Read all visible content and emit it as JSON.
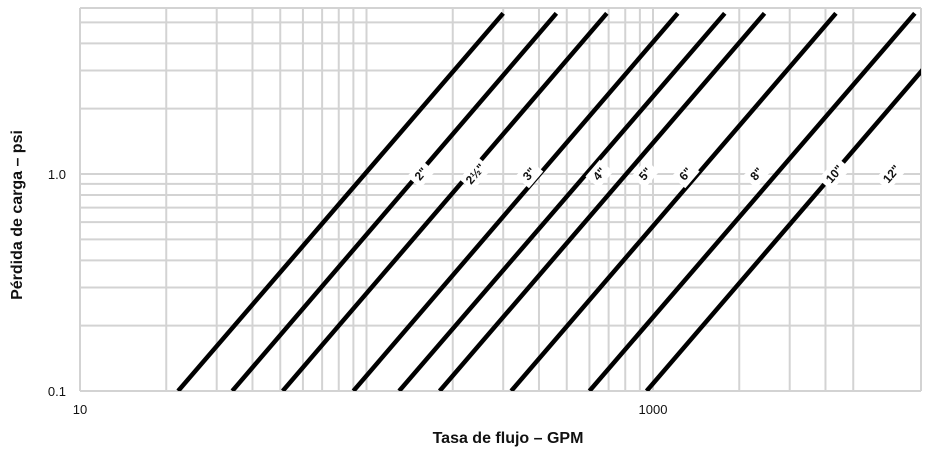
{
  "chart_data": {
    "type": "line",
    "title": "",
    "xlabel": "Tasa de flujo – GPM",
    "ylabel": "Pérdida de carga – psi",
    "x_scale": "log",
    "y_scale": "log",
    "xlim": [
      10,
      5000
    ],
    "ylim": [
      0.1,
      5.5
    ],
    "x_ticks": [
      {
        "value": 10,
        "label": "10"
      },
      {
        "value": 1000,
        "label": "1000"
      }
    ],
    "y_ticks": [
      {
        "value": 0.1,
        "label": "0.1"
      },
      {
        "value": 1.0,
        "label": "1.0"
      }
    ],
    "grid": true,
    "line_color": "#000000",
    "grid_color": "#d3d3d3",
    "series": [
      {
        "name": "2\"",
        "points": [
          [
            22,
            0.1
          ],
          [
            300,
            5.5
          ]
        ],
        "label_at": [
          155,
          1.0
        ]
      },
      {
        "name": "2½\"",
        "points": [
          [
            34,
            0.1
          ],
          [
            460,
            5.5
          ]
        ],
        "label_at": [
          240,
          1.0
        ]
      },
      {
        "name": "3\"",
        "points": [
          [
            51,
            0.1
          ],
          [
            690,
            5.5
          ]
        ],
        "label_at": [
          370,
          1.0
        ]
      },
      {
        "name": "4\"",
        "points": [
          [
            90,
            0.1
          ],
          [
            1220,
            5.5
          ]
        ],
        "label_at": [
          650,
          1.0
        ]
      },
      {
        "name": "5\"",
        "points": [
          [
            130,
            0.1
          ],
          [
            1780,
            5.5
          ]
        ],
        "label_at": [
          940,
          1.0
        ]
      },
      {
        "name": "6\"",
        "points": [
          [
            180,
            0.1
          ],
          [
            2450,
            5.5
          ]
        ],
        "label_at": [
          1300,
          1.0
        ]
      },
      {
        "name": "8\"",
        "points": [
          [
            320,
            0.1
          ],
          [
            4350,
            5.5
          ]
        ],
        "label_at": [
          2300,
          1.0
        ]
      },
      {
        "name": "10\"",
        "points": [
          [
            600,
            0.1
          ],
          [
            8200,
            5.5
          ]
        ],
        "label_at": [
          4300,
          1.0
        ]
      },
      {
        "name": "12\"",
        "points": [
          [
            950,
            0.1
          ],
          [
            12900,
            5.5
          ]
        ],
        "label_at": [
          6800,
          1.0
        ]
      }
    ]
  }
}
